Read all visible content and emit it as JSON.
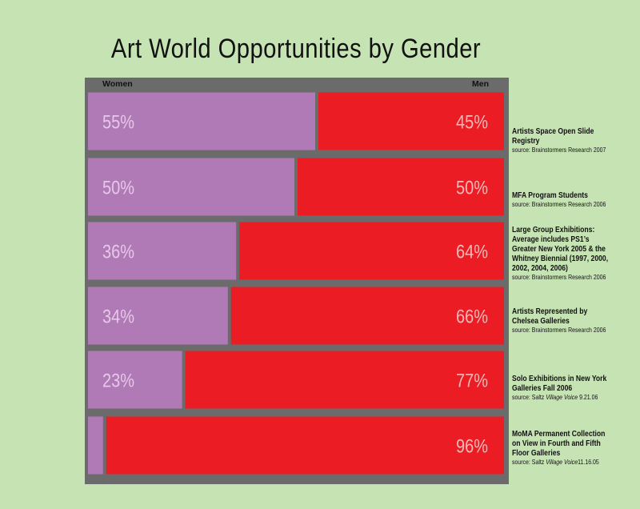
{
  "chart_data": {
    "type": "bar",
    "stacked": "horizontal-100-percent",
    "title": "Art World Opportunities by Gender",
    "series": [
      {
        "name": "Women",
        "color": "#b07ab6",
        "values": [
          55,
          50,
          36,
          34,
          23,
          4
        ]
      },
      {
        "name": "Men",
        "color": "#ec1c24",
        "values": [
          45,
          50,
          64,
          66,
          77,
          96
        ]
      }
    ],
    "categories": [
      "Artists Space Open Slide Registry",
      "MFA Program Students",
      "Large Group Exhibitions: Average includes PS1’s Greater New York 2005 & the Whitney Biennial (1997, 2000, 2002, 2004, 2006)",
      "Artists Represented by Chelsea Galleries",
      "Solo Exhibitions in New York Galleries Fall 2006",
      "MoMA Permanent Collection on View in Fourth and Fifth Floor Galleries"
    ],
    "labels": {
      "women": [
        "55%",
        "50%",
        "36%",
        "34%",
        "23%",
        ""
      ],
      "men": [
        "45%",
        "50%",
        "64%",
        "66%",
        "77%",
        "96%"
      ]
    },
    "sources": [
      {
        "prefix": "source: Brainstormers Research 2007",
        "italic": "",
        "suffix": ""
      },
      {
        "prefix": "source: Brainstormers Research 2006",
        "italic": "",
        "suffix": ""
      },
      {
        "prefix": "source: Brainstormers Research 2006",
        "italic": "",
        "suffix": ""
      },
      {
        "prefix": "source: Brainstormers Research 2006",
        "italic": "",
        "suffix": ""
      },
      {
        "prefix": "source: Saltz ",
        "italic": "Village Voice",
        "suffix": " 9.21.06"
      },
      {
        "prefix": "source: Saltz ",
        "italic": "Village Voice",
        "suffix": "11.16.05"
      }
    ],
    "xlim": [
      0,
      100
    ],
    "legend": "top",
    "grid": false,
    "colors": {
      "background": "#c6e3b4",
      "frame": "#6b6b6b",
      "women_label": "#e6c8e8",
      "men_label": "#f6b9b7"
    }
  }
}
